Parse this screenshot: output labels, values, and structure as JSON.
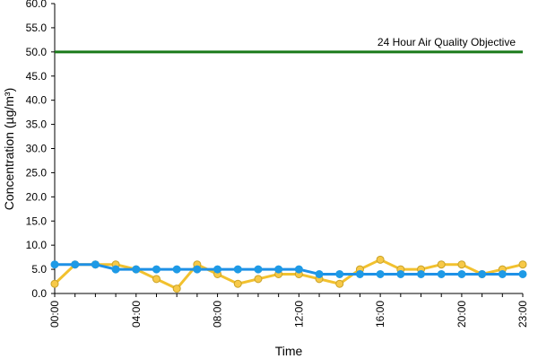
{
  "chart_data": {
    "type": "line",
    "xlabel": "Time",
    "ylabel": "Concentration (µg/m³)",
    "ylim": [
      0,
      60
    ],
    "yticks": [
      "0.0",
      "5.0",
      "10.0",
      "15.0",
      "20.0",
      "25.0",
      "30.0",
      "35.0",
      "40.0",
      "45.0",
      "50.0",
      "55.0",
      "60.0"
    ],
    "x": [
      "00:00",
      "01:00",
      "02:00",
      "03:00",
      "04:00",
      "05:00",
      "06:00",
      "07:00",
      "08:00",
      "09:00",
      "10:00",
      "11:00",
      "12:00",
      "13:00",
      "14:00",
      "15:00",
      "16:00",
      "17:00",
      "18:00",
      "19:00",
      "20:00",
      "21:00",
      "22:00",
      "23:00"
    ],
    "xtick_labels": [
      "00:00",
      "04:00",
      "08:00",
      "12:00",
      "16:00",
      "20:00",
      "23:00"
    ],
    "grid": false,
    "series": [
      {
        "color": "#f2c12e",
        "marker_fill": "#f7c948",
        "marker_stroke": "#c9a227",
        "values": [
          2,
          6,
          6,
          6,
          5,
          3,
          1,
          6,
          4,
          2,
          3,
          4,
          4,
          3,
          2,
          5,
          7,
          5,
          5,
          6,
          6,
          4,
          5,
          6
        ]
      },
      {
        "color": "#1e90e6",
        "marker_fill": "#1e9ae6",
        "marker_stroke": "#1e9ae6",
        "values": [
          6,
          6,
          6,
          5,
          5,
          5,
          5,
          5,
          5,
          5,
          5,
          5,
          5,
          4,
          4,
          4,
          4,
          4,
          4,
          4,
          4,
          4,
          4,
          4
        ]
      }
    ],
    "reference_line": {
      "value": 50,
      "label": "24 Hour Air Quality Objective",
      "color": "#1a7a1a"
    }
  }
}
